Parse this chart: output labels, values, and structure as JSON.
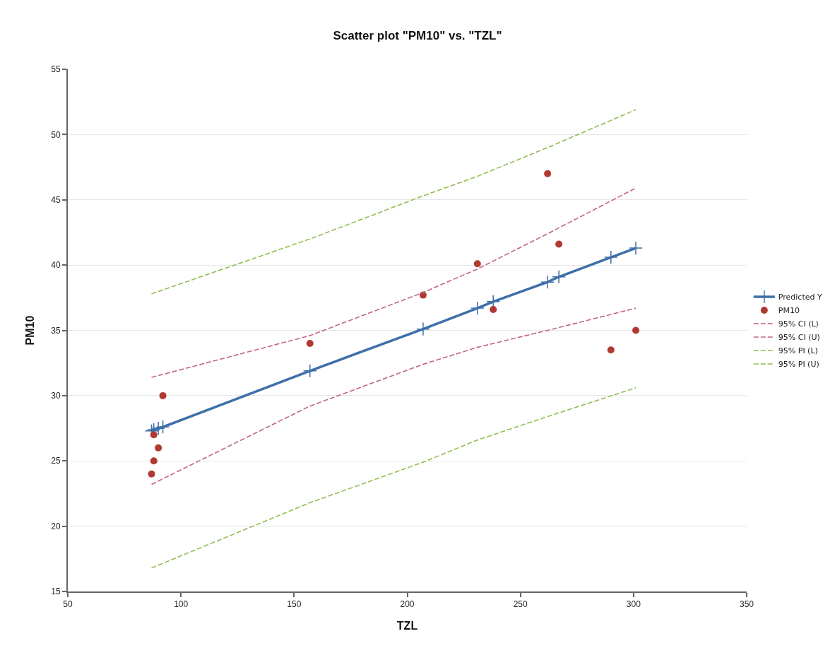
{
  "chart_data": {
    "type": "scatter",
    "title": "Scatter plot \"PM10\" vs. \"TZL\"",
    "xlabel": "TZL",
    "ylabel": "PM10",
    "xlim": [
      50,
      350
    ],
    "xticks": [
      50,
      100,
      150,
      200,
      250,
      300,
      350
    ],
    "ylim": [
      15,
      55
    ],
    "yticks": [
      15,
      20,
      25,
      30,
      35,
      40,
      45,
      50,
      55
    ],
    "grid": "y",
    "legend": "right",
    "series": [
      {
        "name": "Predicted Y",
        "type": "line",
        "color": "#3d6fa8",
        "marker": "cross",
        "line_style": "solid",
        "x": [
          87,
          88,
          90,
          92,
          157,
          207,
          231,
          238,
          262,
          267,
          290,
          301
        ],
        "values": [
          27.3,
          27.4,
          27.5,
          27.6,
          31.9,
          35.1,
          36.7,
          37.2,
          38.7,
          39.1,
          40.6,
          41.3
        ]
      },
      {
        "name": "PM10",
        "type": "scatter",
        "color": "#b03a32",
        "marker": "circle",
        "x": [
          87,
          88,
          90,
          88,
          92,
          157,
          207,
          231,
          238,
          262,
          267,
          290,
          301
        ],
        "values": [
          24,
          25,
          26,
          27,
          30,
          34,
          37.7,
          40.1,
          36.6,
          47,
          41.6,
          33.5,
          35
        ]
      },
      {
        "name": "95% CI (L)",
        "type": "line",
        "color": "#c2648c",
        "marker": "none",
        "line_style": "dashed",
        "x": [
          87,
          157,
          207,
          231,
          262,
          301
        ],
        "values": [
          23.2,
          29.2,
          32.4,
          33.7,
          35,
          36.7
        ]
      },
      {
        "name": "95% CI (U)",
        "type": "line",
        "color": "#c2648c",
        "marker": "none",
        "line_style": "dashed",
        "x": [
          87,
          157,
          207,
          231,
          262,
          301
        ],
        "values": [
          31.4,
          34.6,
          37.9,
          39.7,
          42.4,
          45.9
        ]
      },
      {
        "name": "95% PI (L)",
        "type": "line",
        "color": "#8fbf50",
        "marker": "none",
        "line_style": "dashed",
        "x": [
          87,
          157,
          207,
          231,
          262,
          301
        ],
        "values": [
          16.8,
          21.8,
          24.9,
          26.6,
          28.4,
          30.6
        ]
      },
      {
        "name": "95% PI (U)",
        "type": "line",
        "color": "#8fbf50",
        "marker": "none",
        "line_style": "dashed",
        "x": [
          87,
          157,
          207,
          231,
          262,
          301
        ],
        "values": [
          37.8,
          42,
          45.3,
          46.8,
          49,
          51.9
        ]
      }
    ]
  }
}
